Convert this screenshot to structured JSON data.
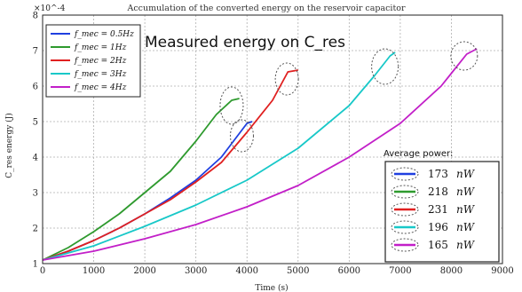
{
  "chart_data": {
    "type": "line",
    "title": "Accumulation of the converted energy on the reservoir capacitor",
    "xlabel": "Time (s)",
    "ylabel": "C_res energy (J)",
    "y_multiplier": "×10^-4",
    "xlim": [
      0,
      9000
    ],
    "ylim": [
      1,
      8
    ],
    "xticks": [
      "0",
      "1000",
      "2000",
      "3000",
      "4000",
      "5000",
      "6000",
      "7000",
      "8000",
      "9000"
    ],
    "yticks": [
      "1",
      "2",
      "3",
      "4",
      "5",
      "6",
      "7",
      "8"
    ],
    "grid": true,
    "legend_position": "top-left",
    "series": [
      {
        "name": "f_mec = 0.5Hz",
        "color": "#1f3fe0",
        "x": [
          0,
          500,
          1000,
          1500,
          2000,
          2500,
          3000,
          3500,
          4000,
          4100
        ],
        "y": [
          1.1,
          1.35,
          1.65,
          2.0,
          2.4,
          2.85,
          3.35,
          4.0,
          4.95,
          5.0
        ]
      },
      {
        "name": "f_mec = 1Hz",
        "color": "#2e9a2e",
        "x": [
          0,
          500,
          1000,
          1500,
          2000,
          2500,
          3000,
          3400,
          3700,
          3850
        ],
        "y": [
          1.1,
          1.45,
          1.9,
          2.4,
          3.0,
          3.6,
          4.45,
          5.2,
          5.6,
          5.65
        ]
      },
      {
        "name": "f_mec = 2Hz",
        "color": "#e02020",
        "x": [
          0,
          500,
          1000,
          1500,
          2000,
          2500,
          3000,
          3500,
          4000,
          4500,
          4800,
          5000
        ],
        "y": [
          1.1,
          1.35,
          1.65,
          2.0,
          2.4,
          2.8,
          3.3,
          3.85,
          4.7,
          5.6,
          6.4,
          6.45
        ]
      },
      {
        "name": "f_mec = 3Hz",
        "color": "#18c8c8",
        "x": [
          0,
          1000,
          2000,
          3000,
          4000,
          5000,
          6000,
          6500,
          6800,
          6900
        ],
        "y": [
          1.1,
          1.5,
          2.05,
          2.65,
          3.35,
          4.25,
          5.45,
          6.3,
          6.85,
          6.95
        ]
      },
      {
        "name": "f_mec = 4Hz",
        "color": "#c21fc8",
        "x": [
          0,
          1000,
          2000,
          3000,
          4000,
          5000,
          6000,
          7000,
          7800,
          8300,
          8500
        ],
        "y": [
          1.1,
          1.35,
          1.7,
          2.1,
          2.6,
          3.2,
          4.0,
          4.95,
          6.0,
          6.9,
          7.05
        ]
      }
    ],
    "annotation": "Measured energy on C_res",
    "power_box": {
      "title": "Average power:",
      "rows": [
        {
          "value": "173",
          "unit": "nW",
          "color": "#1f3fe0"
        },
        {
          "value": "218",
          "unit": "nW",
          "color": "#2e9a2e"
        },
        {
          "value": "231",
          "unit": "nW",
          "color": "#e02020"
        },
        {
          "value": "196",
          "unit": "nW",
          "color": "#18c8c8"
        },
        {
          "value": "165",
          "unit": "nW",
          "color": "#c21fc8"
        }
      ]
    },
    "highlight_ellipses": [
      "end of f_mec = 1Hz",
      "end of f_mec = 0.5Hz",
      "end of f_mec = 2Hz",
      "end of f_mec = 3Hz",
      "end of f_mec = 4Hz"
    ]
  }
}
